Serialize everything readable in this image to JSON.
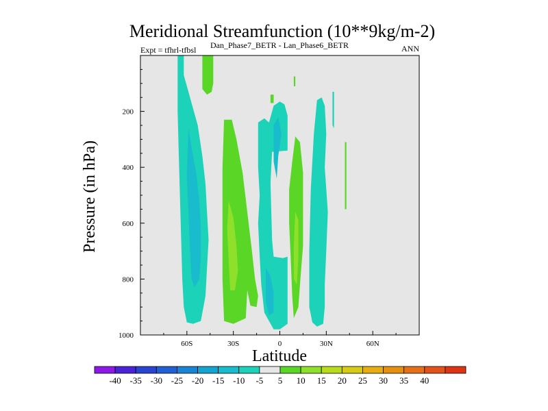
{
  "chart_data": {
    "type": "contour",
    "title": "Meridional Streamfunction (10**9kg/m-2)",
    "subtitle_left": "Expt = tfhrl-tfbsl",
    "subtitle_center": "Dan_Phase7_BETR - Lan_Phase6_BETR",
    "subtitle_right": "ANN",
    "xlabel": "Latitude",
    "ylabel": "Pressure (in hPa)",
    "xlim": [
      -90,
      90
    ],
    "ylim": [
      1000,
      0
    ],
    "x_ticks": [
      {
        "value": -60,
        "label": "60S"
      },
      {
        "value": -30,
        "label": "30S"
      },
      {
        "value": 0,
        "label": "0"
      },
      {
        "value": 30,
        "label": "30N"
      },
      {
        "value": 60,
        "label": "60N"
      }
    ],
    "y_ticks": [
      {
        "value": 200,
        "label": "200"
      },
      {
        "value": 400,
        "label": "400"
      },
      {
        "value": 600,
        "label": "600"
      },
      {
        "value": 800,
        "label": "800"
      },
      {
        "value": 1000,
        "label": "1000"
      }
    ],
    "background_color": "#e6e6e6",
    "colorbar": {
      "colors": [
        "#8c1ae6",
        "#4a22d8",
        "#2a44d2",
        "#2060d4",
        "#1a84d4",
        "#14a4d0",
        "#18bccc",
        "#1cd2b8",
        "#e6e6e6",
        "#5ad626",
        "#8ee02a",
        "#b8dc1c",
        "#d6cc16",
        "#e6ae12",
        "#e69012",
        "#e6701a",
        "#e4521c",
        "#dc3414"
      ],
      "labels": [
        "-40",
        "-35",
        "-30",
        "-25",
        "-20",
        "-15",
        "-10",
        "-5",
        "5",
        "10",
        "15",
        "20",
        "25",
        "30",
        "35",
        "40"
      ]
    },
    "regions": [
      {
        "name": "sh-band-outer",
        "level": "-5",
        "color": "#1cd2b8",
        "points": [
          [
            -66,
            0
          ],
          [
            -62,
            0
          ],
          [
            -62,
            70
          ],
          [
            -58,
            150
          ],
          [
            -53,
            250
          ],
          [
            -50,
            360
          ],
          [
            -48,
            460
          ],
          [
            -47,
            560
          ],
          [
            -46,
            660
          ],
          [
            -47,
            760
          ],
          [
            -48,
            860
          ],
          [
            -51,
            950
          ],
          [
            -56,
            960
          ],
          [
            -60,
            955
          ],
          [
            -62,
            900
          ],
          [
            -63,
            800
          ],
          [
            -64,
            600
          ],
          [
            -65,
            400
          ],
          [
            -66,
            200
          ]
        ]
      },
      {
        "name": "sh-band-inner",
        "level": "-10",
        "color": "#18bccc",
        "points": [
          [
            -59,
            260
          ],
          [
            -57,
            330
          ],
          [
            -54,
            420
          ],
          [
            -52,
            520
          ],
          [
            -51,
            620
          ],
          [
            -51,
            720
          ],
          [
            -52,
            800
          ],
          [
            -55,
            830
          ],
          [
            -57,
            800
          ],
          [
            -58,
            700
          ],
          [
            -59,
            560
          ],
          [
            -60,
            430
          ]
        ]
      },
      {
        "name": "sh-upper-pos",
        "level": "5",
        "color": "#5ad626",
        "points": [
          [
            -50,
            0
          ],
          [
            -43,
            0
          ],
          [
            -43,
            100
          ],
          [
            -44,
            130
          ],
          [
            -47,
            140
          ],
          [
            -50,
            120
          ]
        ]
      },
      {
        "name": "sh-pos-band",
        "level": "5",
        "color": "#5ad626",
        "points": [
          [
            -36,
            230
          ],
          [
            -31,
            230
          ],
          [
            -28,
            300
          ],
          [
            -24,
            420
          ],
          [
            -21,
            560
          ],
          [
            -18,
            700
          ],
          [
            -16,
            800
          ],
          [
            -14,
            860
          ],
          [
            -15,
            900
          ],
          [
            -19,
            895
          ],
          [
            -21,
            840
          ],
          [
            -22,
            940
          ],
          [
            -30,
            960
          ],
          [
            -36,
            950
          ],
          [
            -37,
            800
          ],
          [
            -37,
            600
          ],
          [
            -37,
            400
          ]
        ]
      },
      {
        "name": "sh-pos-core",
        "level": "10",
        "color": "#8ee02a",
        "points": [
          [
            -33,
            520
          ],
          [
            -30,
            580
          ],
          [
            -28,
            680
          ],
          [
            -27,
            770
          ],
          [
            -29,
            840
          ],
          [
            -32,
            840
          ],
          [
            -33,
            740
          ],
          [
            -34,
            620
          ]
        ]
      },
      {
        "name": "eq-neg-outer",
        "level": "-5",
        "color": "#1cd2b8",
        "points": [
          [
            -14,
            240
          ],
          [
            -10,
            225
          ],
          [
            -7,
            240
          ],
          [
            -4,
            180
          ],
          [
            0,
            165
          ],
          [
            3,
            175
          ],
          [
            5,
            215
          ],
          [
            5,
            340
          ],
          [
            -5,
            345
          ],
          [
            -6,
            455
          ],
          [
            -5,
            660
          ],
          [
            -4,
            720
          ],
          [
            2,
            725
          ],
          [
            5,
            720
          ],
          [
            5,
            880
          ],
          [
            5,
            960
          ],
          [
            0,
            980
          ],
          [
            -4,
            980
          ],
          [
            -10,
            920
          ],
          [
            -12,
            820
          ],
          [
            -13,
            720
          ],
          [
            -14,
            600
          ],
          [
            -13,
            500
          ],
          [
            -14,
            400
          ]
        ]
      },
      {
        "name": "eq-neg-inner",
        "level": "-10",
        "color": "#18bccc",
        "points": [
          [
            -4,
            250
          ],
          [
            -1,
            220
          ],
          [
            1,
            280
          ],
          [
            -1,
            360
          ],
          [
            -2,
            440
          ],
          [
            -4,
            380
          ]
        ]
      },
      {
        "name": "eq-neg-lower",
        "level": "-10",
        "color": "#18bccc",
        "points": [
          [
            -9,
            760
          ],
          [
            -6,
            790
          ],
          [
            -4,
            850
          ],
          [
            -4,
            920
          ],
          [
            -7,
            930
          ],
          [
            -9,
            880
          ]
        ]
      },
      {
        "name": "eq-pos-band",
        "level": "5",
        "color": "#5ad626",
        "points": [
          [
            10,
            290
          ],
          [
            13,
            310
          ],
          [
            15,
            420
          ],
          [
            15,
            560
          ],
          [
            15,
            680
          ],
          [
            13,
            820
          ],
          [
            12,
            900
          ],
          [
            9,
            940
          ],
          [
            8,
            860
          ],
          [
            7,
            720
          ],
          [
            6,
            600
          ],
          [
            6,
            480
          ],
          [
            8,
            380
          ]
        ]
      },
      {
        "name": "eq-pos-core",
        "level": "10",
        "color": "#8ee02a",
        "points": [
          [
            10,
            560
          ],
          [
            12,
            590
          ],
          [
            12,
            720
          ],
          [
            11,
            820
          ],
          [
            9,
            800
          ],
          [
            9,
            680
          ]
        ]
      },
      {
        "name": "nh-band",
        "level": "-5",
        "color": "#1cd2b8",
        "points": [
          [
            24,
            160
          ],
          [
            27,
            150
          ],
          [
            29,
            180
          ],
          [
            30,
            280
          ],
          [
            29,
            400
          ],
          [
            31,
            560
          ],
          [
            30,
            700
          ],
          [
            29,
            820
          ],
          [
            29,
            900
          ],
          [
            28,
            960
          ],
          [
            24,
            970
          ],
          [
            21,
            955
          ],
          [
            19,
            900
          ],
          [
            19,
            700
          ],
          [
            20,
            480
          ],
          [
            22,
            280
          ]
        ]
      },
      {
        "name": "nh-pos-blob-a",
        "level": "5",
        "color": "#5ad626",
        "points": [
          [
            -6,
            140
          ],
          [
            -4,
            140
          ],
          [
            -4,
            170
          ],
          [
            -6,
            170
          ]
        ]
      },
      {
        "name": "nh-pos-blob-b",
        "level": "5",
        "color": "#5ad626",
        "points": [
          [
            9,
            75
          ],
          [
            10,
            75
          ],
          [
            10,
            110
          ],
          [
            9,
            110
          ]
        ]
      },
      {
        "name": "nh-neg-streak",
        "level": "-5",
        "color": "#1cd2b8",
        "points": [
          [
            34,
            130
          ],
          [
            35,
            130
          ],
          [
            35,
            260
          ],
          [
            34,
            250
          ]
        ]
      },
      {
        "name": "nh-pos-streak",
        "level": "5",
        "color": "#5ad626",
        "points": [
          [
            42,
            310
          ],
          [
            43,
            310
          ],
          [
            43,
            550
          ],
          [
            42,
            550
          ]
        ]
      }
    ]
  }
}
